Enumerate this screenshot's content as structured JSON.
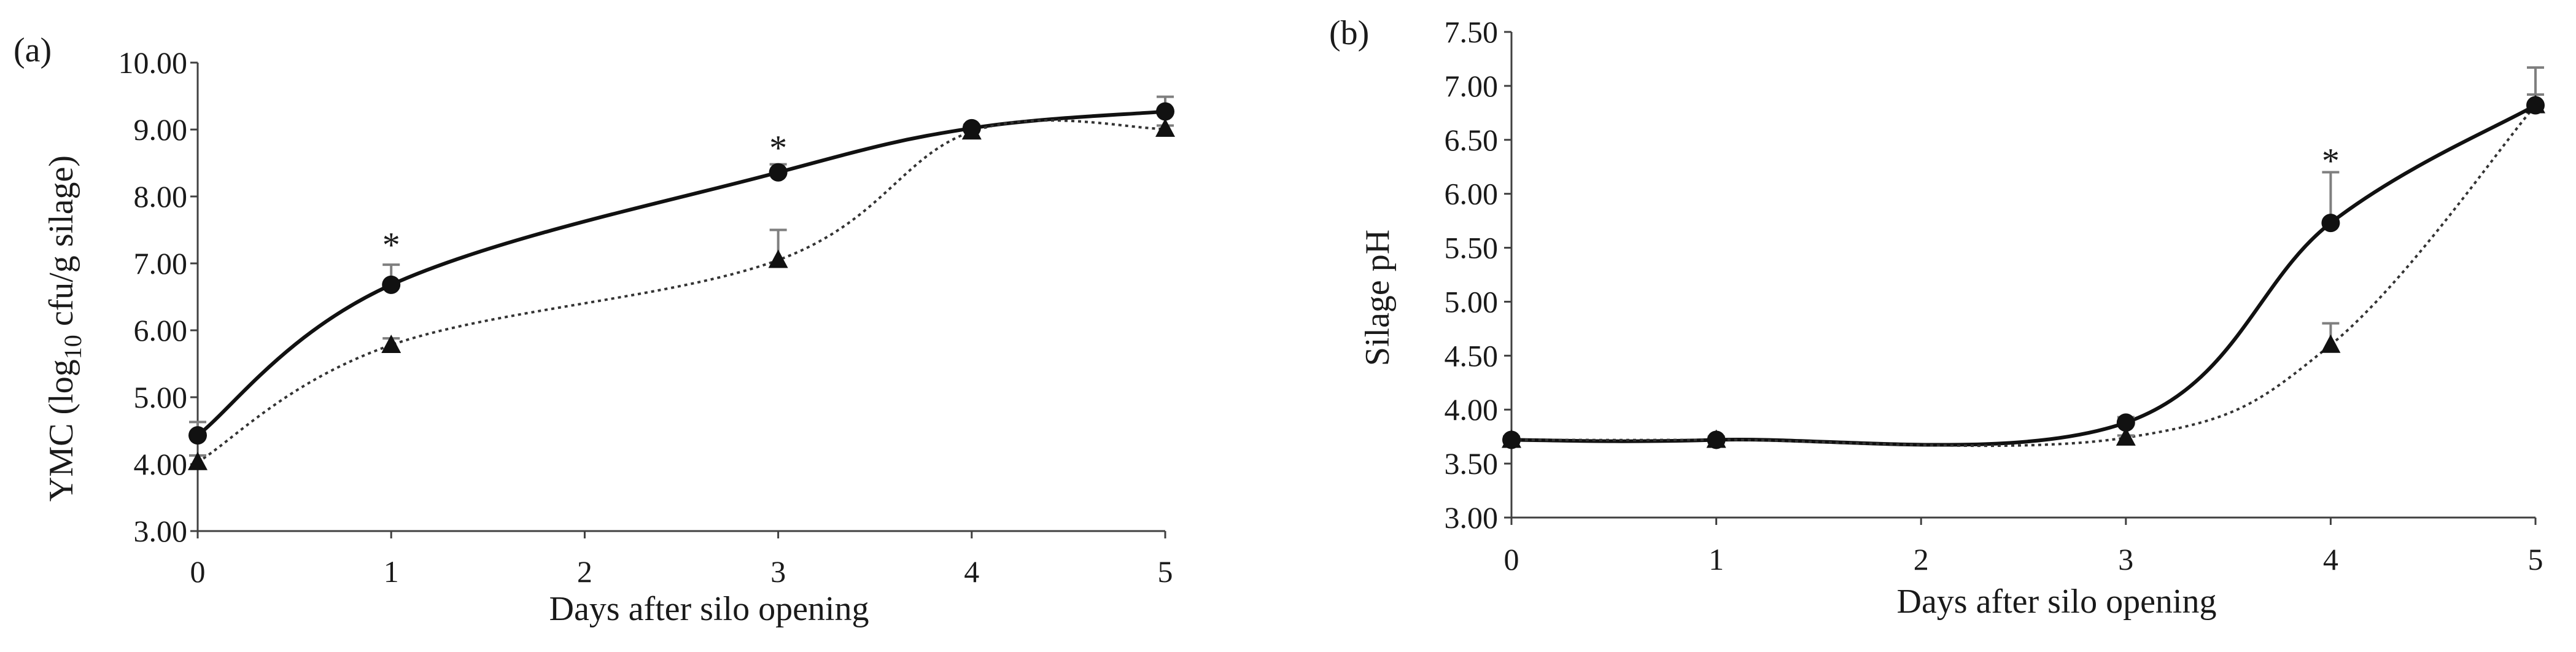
{
  "chart_data": [
    {
      "type": "line",
      "panel_label": "(a)",
      "xlabel": "Days after silo opening",
      "ylabel_main": "YMC (log",
      "ylabel_sub": "10",
      "ylabel_rest": " cfu/g silage)",
      "xlim": [
        0,
        5
      ],
      "ylim": [
        3.0,
        10.0
      ],
      "x_ticks": [
        "0",
        "1",
        "2",
        "3",
        "4",
        "5"
      ],
      "y_ticks": [
        "3.00",
        "4.00",
        "5.00",
        "6.00",
        "7.00",
        "8.00",
        "9.00",
        "10.00"
      ],
      "grid": false,
      "series": [
        {
          "marker": "circle",
          "line_style": "solid",
          "x": [
            0,
            1,
            3,
            4,
            5
          ],
          "y": [
            4.43,
            6.68,
            8.36,
            9.02,
            9.27
          ],
          "error": [
            0.2,
            0.3,
            0.12,
            0.05,
            0.22
          ]
        },
        {
          "marker": "triangle",
          "line_style": "dotted",
          "x": [
            0,
            1,
            3,
            4,
            5
          ],
          "y": [
            4.03,
            5.78,
            7.05,
            8.97,
            9.01
          ],
          "error": [
            0.1,
            0.1,
            0.45,
            0.05,
            0.05
          ]
        }
      ],
      "annotations": [
        {
          "text": "*",
          "x": 1,
          "y": 7.3
        },
        {
          "text": "*",
          "x": 3,
          "y": 8.75
        }
      ]
    },
    {
      "type": "line",
      "panel_label": "(b)",
      "xlabel": "Days after silo opening",
      "ylabel": "Silage pH",
      "xlim": [
        0,
        5
      ],
      "ylim": [
        3.0,
        7.5
      ],
      "x_ticks": [
        "0",
        "1",
        "2",
        "3",
        "4",
        "5"
      ],
      "y_ticks": [
        "3.00",
        "3.50",
        "4.00",
        "4.50",
        "5.00",
        "5.50",
        "6.00",
        "6.50",
        "7.00",
        "7.50"
      ],
      "grid": false,
      "series": [
        {
          "marker": "circle",
          "line_style": "solid",
          "x": [
            0,
            1,
            3,
            4,
            5
          ],
          "y": [
            3.72,
            3.72,
            3.88,
            5.73,
            6.82
          ],
          "error": [
            0.03,
            0.03,
            0.05,
            0.47,
            0.35
          ]
        },
        {
          "marker": "triangle",
          "line_style": "dotted",
          "x": [
            0,
            1,
            3,
            4,
            5
          ],
          "y": [
            3.72,
            3.72,
            3.74,
            4.6,
            6.82
          ],
          "error": [
            0.02,
            0.02,
            0.02,
            0.2,
            0.1
          ]
        }
      ],
      "annotations": [
        {
          "text": "*",
          "x": 4,
          "y": 6.32
        }
      ]
    }
  ],
  "colors": {
    "axis": "#404040",
    "line": "#111111",
    "dotted_line": "#333333",
    "error_bar": "#7f7f7f",
    "marker": "#111111"
  }
}
